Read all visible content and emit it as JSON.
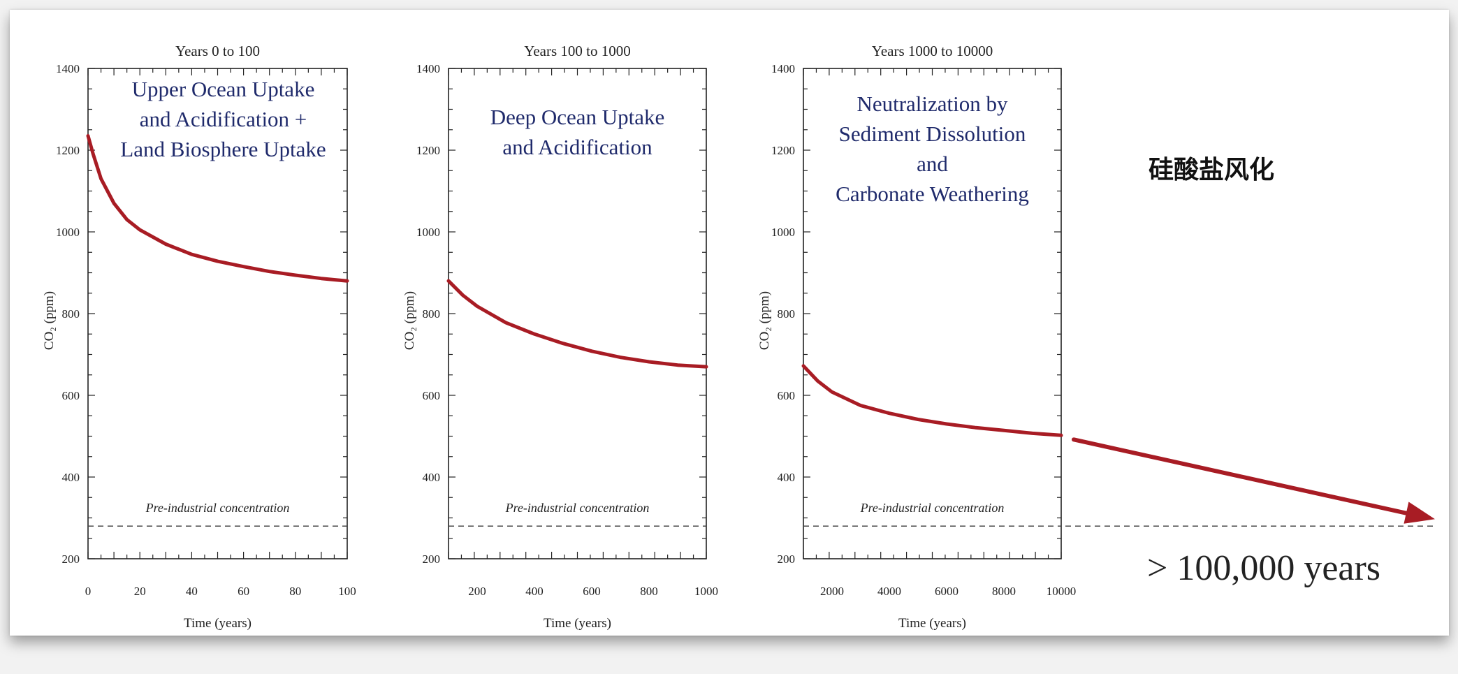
{
  "colors": {
    "curve": "#a81c24",
    "annotation": "#1f2a6b",
    "axis": "#222222",
    "dash": "#444444"
  },
  "chart_data": [
    {
      "type": "line",
      "title": "Years  0 to 100",
      "annotation": [
        "Upper Ocean Uptake",
        "and Acidification +",
        "Land Biosphere Uptake"
      ],
      "xlabel": "Time (years)",
      "ylabel": "CO₂ (ppm)",
      "xlim": [
        0,
        100
      ],
      "ylim": [
        200,
        1400
      ],
      "xticks": [
        0,
        20,
        40,
        60,
        80,
        100
      ],
      "yticks": [
        200,
        400,
        600,
        800,
        1000,
        1200,
        1400
      ],
      "reference_value": 280,
      "reference_label": "Pre-industrial concentration",
      "series": [
        {
          "x": [
            0,
            2,
            5,
            10,
            15,
            20,
            30,
            40,
            50,
            60,
            70,
            80,
            90,
            100
          ],
          "y": [
            1235,
            1190,
            1130,
            1070,
            1030,
            1005,
            970,
            945,
            928,
            915,
            903,
            894,
            886,
            880
          ]
        }
      ]
    },
    {
      "type": "line",
      "title": "Years 100 to 1000",
      "annotation": [
        "Deep Ocean Uptake",
        "and Acidification"
      ],
      "xlabel": "Time (years)",
      "ylabel": "CO₂ (ppm)",
      "xlim": [
        100,
        1000
      ],
      "ylim": [
        200,
        1400
      ],
      "xticks": [
        200,
        400,
        600,
        800,
        1000
      ],
      "yticks": [
        200,
        400,
        600,
        800,
        1000,
        1200,
        1400
      ],
      "reference_value": 280,
      "reference_label": "Pre-industrial concentration",
      "series": [
        {
          "x": [
            100,
            150,
            200,
            300,
            400,
            500,
            600,
            700,
            800,
            900,
            1000
          ],
          "y": [
            880,
            845,
            818,
            778,
            750,
            727,
            708,
            693,
            682,
            674,
            670
          ]
        }
      ]
    },
    {
      "type": "line",
      "title": "Years 1000 to 10000",
      "annotation": [
        "Neutralization by",
        "Sediment Dissolution",
        "and",
        "Carbonate Weathering"
      ],
      "xlabel": "Time (years)",
      "ylabel": "CO₂ (ppm)",
      "xlim": [
        1000,
        10000
      ],
      "ylim": [
        200,
        1400
      ],
      "xticks": [
        2000,
        4000,
        6000,
        8000,
        10000
      ],
      "yticks": [
        200,
        400,
        600,
        800,
        1000,
        1200,
        1400
      ],
      "reference_value": 280,
      "reference_label": "Pre-industrial concentration",
      "series": [
        {
          "x": [
            1000,
            1500,
            2000,
            3000,
            4000,
            5000,
            6000,
            7000,
            8000,
            9000,
            10000
          ],
          "y": [
            672,
            635,
            608,
            575,
            556,
            541,
            530,
            521,
            514,
            507,
            502
          ]
        }
      ]
    }
  ],
  "notes": {
    "chinese_label": "硅酸盐风化",
    "long_term": "> 100,000 years"
  }
}
